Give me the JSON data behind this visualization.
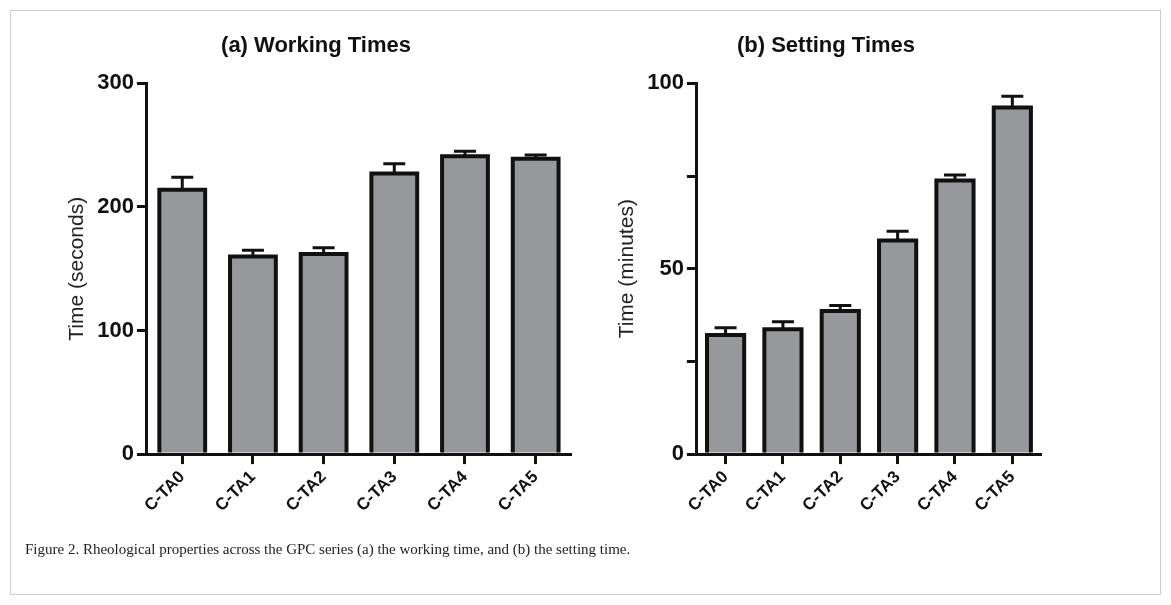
{
  "chart_data": [
    {
      "type": "bar",
      "title": "(a) Working Times",
      "ylabel": "Time (seconds)",
      "categories": [
        "C-TA0",
        "C-TA1",
        "C-TA2",
        "C-TA3",
        "C-TA4",
        "C-TA5"
      ],
      "values": [
        214,
        160,
        162,
        227,
        241,
        239
      ],
      "errors": [
        10,
        5,
        5,
        8,
        4,
        3
      ],
      "color": "#97989c",
      "ylim": [
        0,
        300
      ],
      "yticks": [
        0,
        100,
        200,
        300
      ],
      "annotations": [
        "Figure 2. Rheological properties across the GPC series (a) the working time, and (b) the setting time."
      ]
    },
    {
      "type": "bar",
      "title": "(b) Setting Times",
      "ylabel": "Time (minutes)",
      "categories": [
        "C-TA0",
        "C-TA1",
        "C-TA2",
        "C-TA3",
        "C-TA4",
        "C-TA5"
      ],
      "values": [
        32.1,
        33.7,
        38.6,
        57.6,
        73.8,
        93.5
      ],
      "errors": [
        2,
        2,
        1.5,
        2.5,
        1.5,
        3
      ],
      "color": "#97989c",
      "ylim": [
        0,
        100
      ],
      "yticks": [
        0,
        {
          "value": 25,
          "label": null
        },
        50,
        {
          "value": 75,
          "label": null
        },
        100
      ]
    }
  ]
}
